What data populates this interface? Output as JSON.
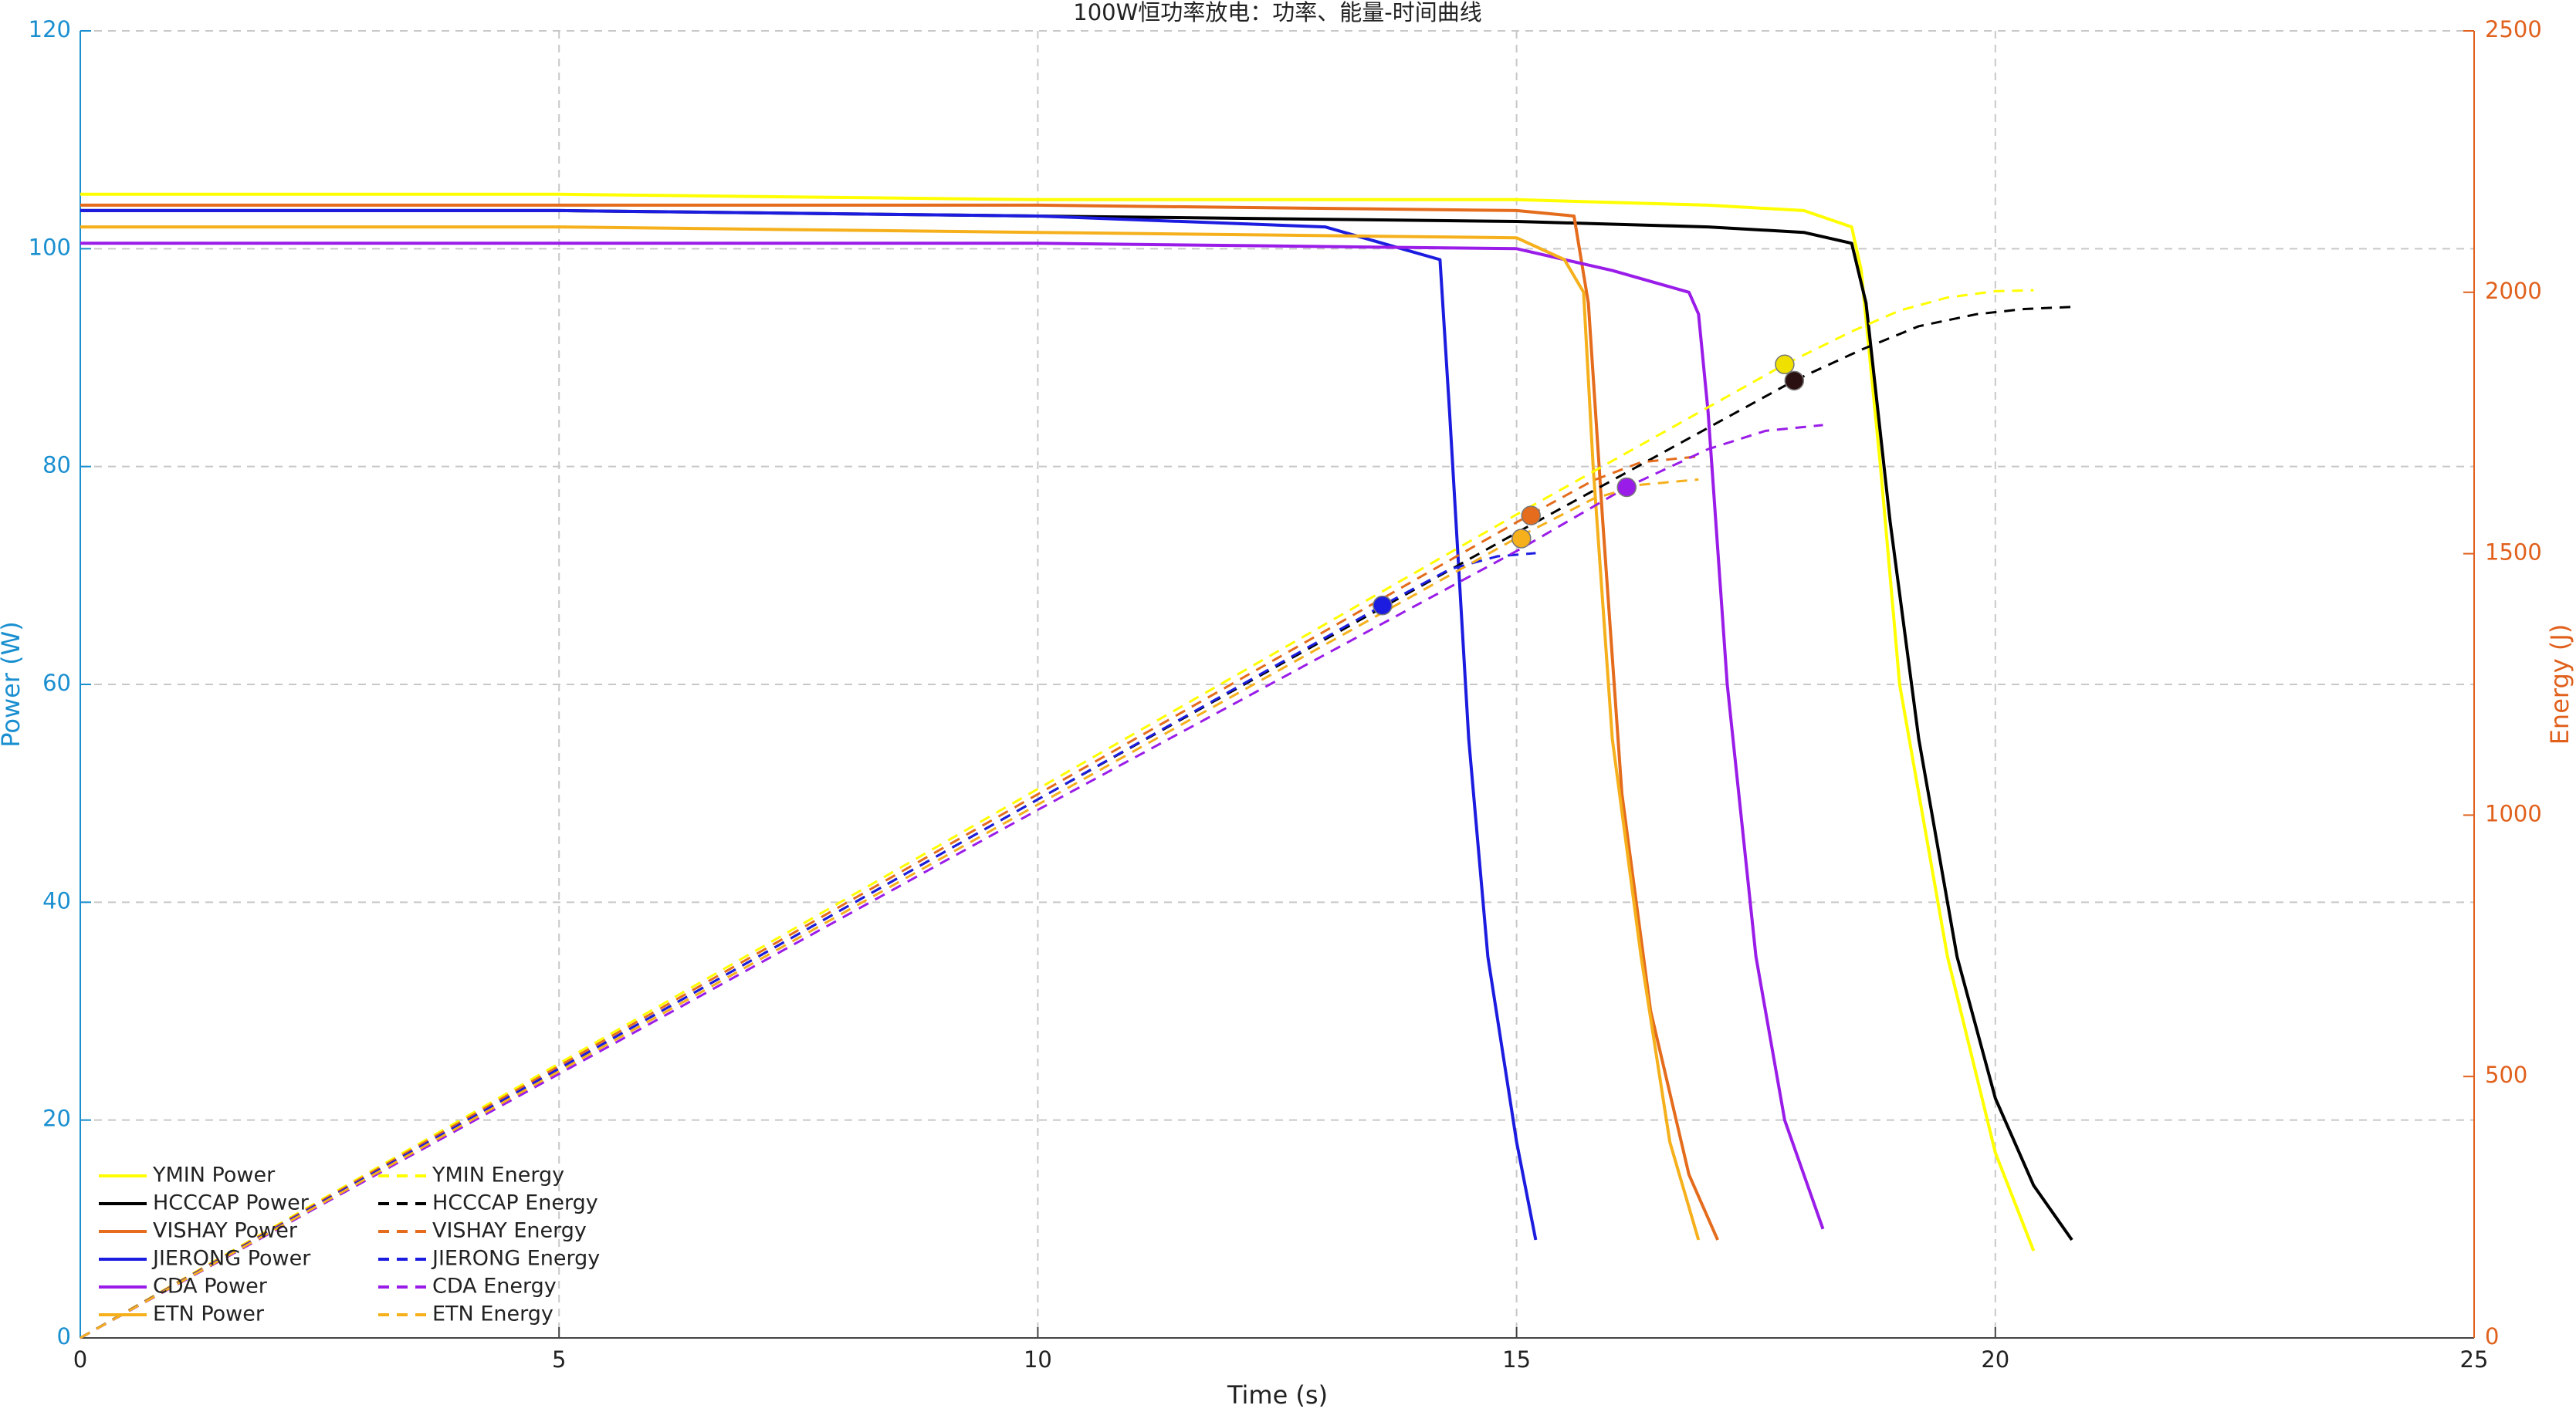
{
  "chart_data": {
    "type": "line",
    "title": "100W恒功率放电：功率、能量-时间曲线",
    "xlabel": "Time (s)",
    "ylabel": "Power (W)",
    "y2label": "Energy (J)",
    "xlim": [
      0,
      25
    ],
    "xticks": [
      0,
      5,
      10,
      15,
      20,
      25
    ],
    "ylim": [
      0,
      120
    ],
    "yticks": [
      0,
      20,
      40,
      60,
      80,
      100,
      120
    ],
    "y2lim": [
      0,
      2500
    ],
    "y2ticks": [
      0,
      500,
      1000,
      1500,
      2000,
      2500
    ],
    "ycolor": "#1a8fd0",
    "y2color": "#e0601c",
    "grid": true,
    "legend": "lower left",
    "series": [
      {
        "name": "YMIN Power",
        "color": "#ffff00",
        "style": "solid",
        "axis": "y",
        "x": [
          0,
          5,
          10,
          15,
          17,
          18,
          18.5,
          18.6,
          18.8,
          19,
          19.5,
          20,
          20.4
        ],
        "values": [
          105,
          105,
          104.5,
          104.5,
          104,
          103.5,
          102,
          98,
          80,
          60,
          35,
          17,
          8
        ]
      },
      {
        "name": "HCCCAP Power",
        "color": "#000000",
        "style": "solid",
        "axis": "y",
        "x": [
          0,
          5,
          10,
          15,
          17,
          18,
          18.5,
          18.65,
          18.9,
          19.2,
          19.6,
          20,
          20.4,
          20.8
        ],
        "values": [
          103.5,
          103.5,
          103,
          102.5,
          102,
          101.5,
          100.5,
          95,
          75,
          55,
          35,
          22,
          14,
          9
        ]
      },
      {
        "name": "VISHAY Power",
        "color": "#e46c1c",
        "style": "solid",
        "axis": "y",
        "x": [
          0,
          5,
          10,
          15,
          15.6,
          15.75,
          15.9,
          16.1,
          16.4,
          16.8,
          17.1
        ],
        "values": [
          104,
          104,
          104,
          103.5,
          103,
          95,
          75,
          50,
          30,
          15,
          9
        ]
      },
      {
        "name": "JIERONG Power",
        "color": "#1c1ce0",
        "style": "solid",
        "axis": "y",
        "x": [
          0,
          5,
          10,
          13,
          14.2,
          14.3,
          14.5,
          14.7,
          15,
          15.2
        ],
        "values": [
          103.5,
          103.5,
          103,
          102,
          99,
          85,
          55,
          35,
          18,
          9
        ]
      },
      {
        "name": "CDA Power",
        "color": "#9a1ce8",
        "style": "solid",
        "axis": "y",
        "x": [
          0,
          5,
          10,
          15,
          16,
          16.8,
          16.9,
          17,
          17.2,
          17.5,
          17.8,
          18.2
        ],
        "values": [
          100.5,
          100.5,
          100.5,
          100,
          98,
          96,
          94,
          85,
          60,
          35,
          20,
          10
        ]
      },
      {
        "name": "ETN Power",
        "color": "#f5b01c",
        "style": "solid",
        "axis": "y",
        "x": [
          0,
          5,
          10,
          15,
          15.5,
          15.7,
          15.8,
          16,
          16.3,
          16.6,
          16.9
        ],
        "values": [
          102,
          102,
          101.5,
          101,
          99,
          96,
          80,
          55,
          35,
          18,
          9
        ]
      },
      {
        "name": "YMIN Energy",
        "color": "#ffff00",
        "style": "dashed",
        "axis": "y2",
        "x": [
          0,
          5,
          10,
          15,
          17.8,
          18.5,
          19,
          19.5,
          20,
          20.4
        ],
        "values": [
          0,
          525,
          1050,
          1575,
          1862,
          1925,
          1965,
          1990,
          2002,
          2004
        ],
        "marker": {
          "x": 17.8,
          "y": 1862,
          "color": "#f0e000"
        }
      },
      {
        "name": "HCCCAP Energy",
        "color": "#000000",
        "style": "dashed",
        "axis": "y2",
        "x": [
          0,
          5,
          10,
          15,
          17.9,
          18.6,
          19.2,
          19.8,
          20.3,
          20.8
        ],
        "values": [
          0,
          515,
          1030,
          1540,
          1831,
          1890,
          1935,
          1958,
          1968,
          1972
        ],
        "marker": {
          "x": 17.9,
          "y": 1831,
          "color": "#2a1010"
        }
      },
      {
        "name": "VISHAY Energy",
        "color": "#e46c1c",
        "style": "dashed",
        "axis": "y2",
        "x": [
          0,
          5,
          10,
          15,
          15.8,
          16.3,
          16.9
        ],
        "values": [
          0,
          520,
          1040,
          1560,
          1640,
          1675,
          1686
        ],
        "marker": {
          "x": 15.15,
          "y": 1573,
          "color": "#e46c1c"
        }
      },
      {
        "name": "JIERONG Energy",
        "color": "#1c1ce0",
        "style": "dashed",
        "axis": "y2",
        "x": [
          0,
          5,
          10,
          13.6,
          14.3,
          14.8,
          15.2
        ],
        "values": [
          0,
          515,
          1030,
          1401,
          1470,
          1495,
          1501
        ],
        "marker": {
          "x": 13.6,
          "y": 1401,
          "color": "#1c1ce0"
        }
      },
      {
        "name": "CDA Energy",
        "color": "#9a1ce8",
        "style": "dashed",
        "axis": "y2",
        "x": [
          0,
          5,
          10,
          15,
          16.15,
          17,
          17.6,
          18.2
        ],
        "values": [
          0,
          505,
          1010,
          1505,
          1627,
          1700,
          1735,
          1746
        ],
        "marker": {
          "x": 16.15,
          "y": 1627,
          "color": "#9a1ce8"
        }
      },
      {
        "name": "ETN Energy",
        "color": "#f5b01c",
        "style": "dashed",
        "axis": "y2",
        "x": [
          0,
          5,
          10,
          15,
          15.8,
          16.3,
          16.9
        ],
        "values": [
          0,
          510,
          1020,
          1530,
          1605,
          1632,
          1642
        ],
        "marker": {
          "x": 15.05,
          "y": 1529,
          "color": "#f5b01c"
        }
      }
    ]
  }
}
